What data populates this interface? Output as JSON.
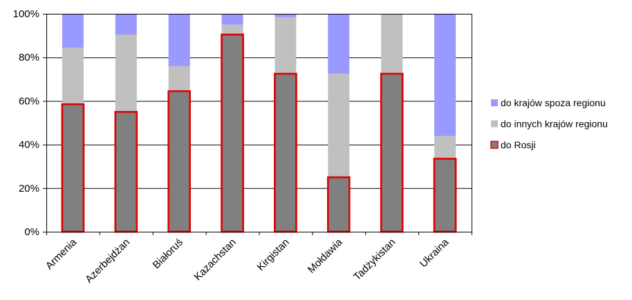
{
  "chart_data": {
    "type": "bar",
    "stacked": true,
    "percent": true,
    "categories": [
      "Armenia",
      "Azerbejdżan",
      "Białoruś",
      "Kazachstan",
      "Kirgistan",
      "Mołdawia",
      "Tadżykistan",
      "Ukraina"
    ],
    "series": [
      {
        "name": "do Rosji",
        "color": "#808080",
        "outline": "#e00000",
        "values": [
          58.5,
          55,
          64.5,
          90.5,
          72.5,
          25,
          72.5,
          33.5
        ]
      },
      {
        "name": "do innych krajów regionu",
        "color": "#c0c0c0",
        "values": [
          26,
          35.5,
          11.5,
          4.5,
          26,
          47.5,
          27.5,
          10.5
        ]
      },
      {
        "name": "do krajów spoza regionu",
        "color": "#9999ff",
        "values": [
          15.5,
          9.5,
          24,
          5,
          1.5,
          27.5,
          0,
          56
        ]
      }
    ],
    "yaxis": {
      "min": 0,
      "max": 100,
      "step": 20,
      "tick_labels": [
        "0%",
        "20%",
        "40%",
        "60%",
        "80%",
        "100%"
      ]
    },
    "grid": true,
    "legend": {
      "position": "right",
      "order": [
        "do krajów spoza regionu",
        "do innych krajów regionu",
        "do Rosji"
      ]
    }
  }
}
